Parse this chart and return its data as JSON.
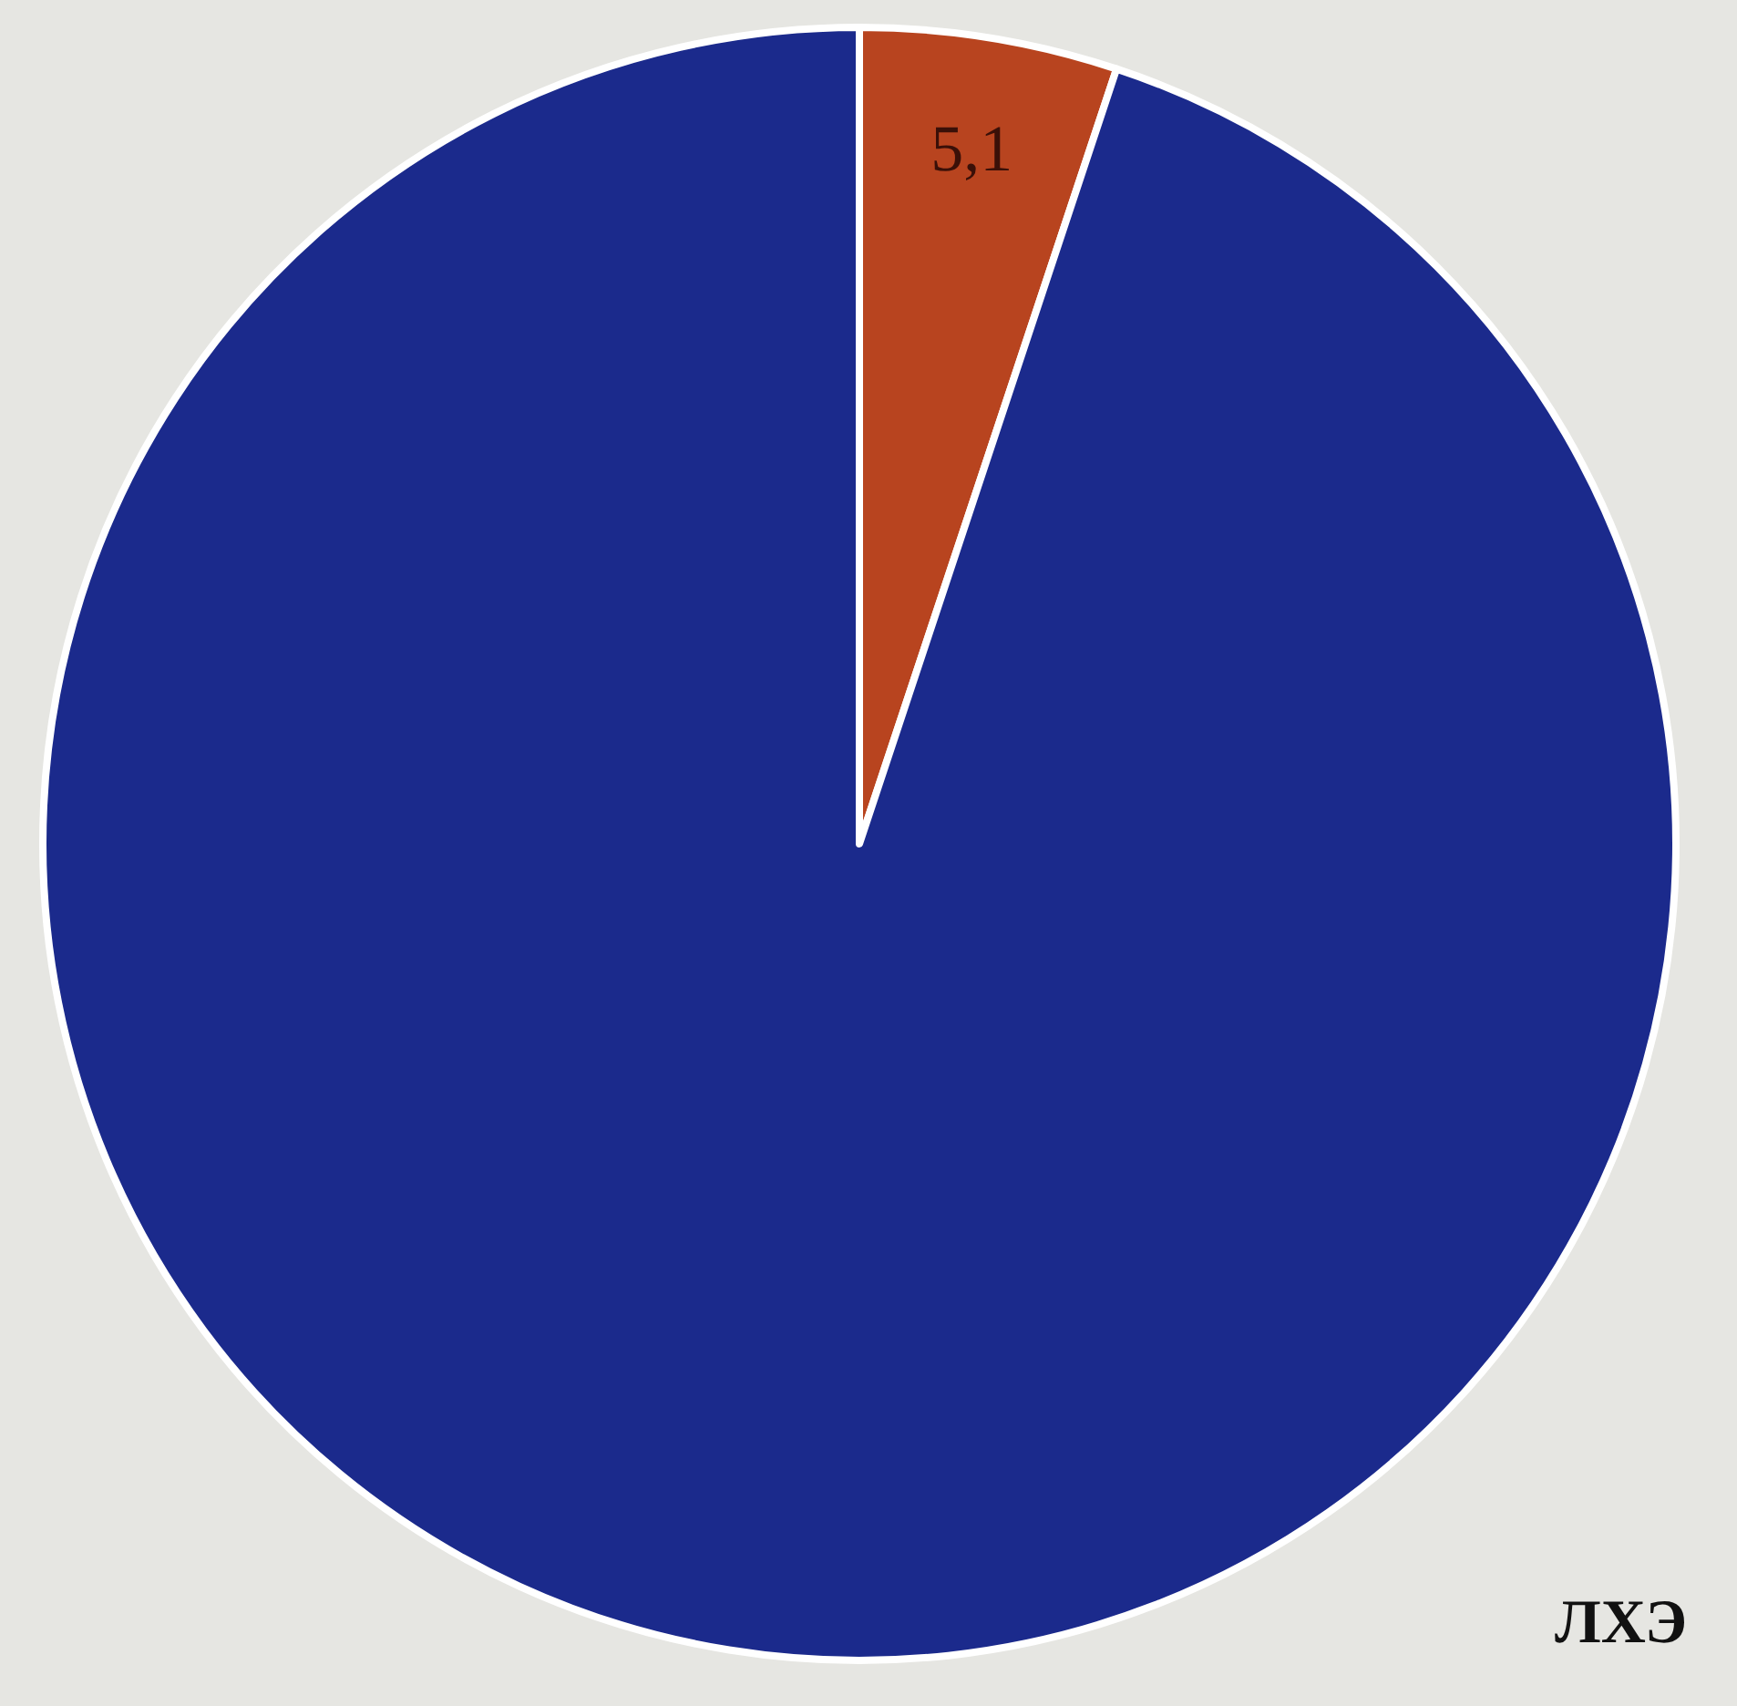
{
  "chart_data": {
    "type": "pie",
    "categories": [
      null,
      null
    ],
    "values": [
      5.1,
      94.9
    ],
    "colors": [
      "#b8441f",
      "#1b2a8c"
    ],
    "value_labels": [
      "5,1",
      null
    ],
    "annotations": [
      "ЛХЭ"
    ],
    "legend": false
  }
}
